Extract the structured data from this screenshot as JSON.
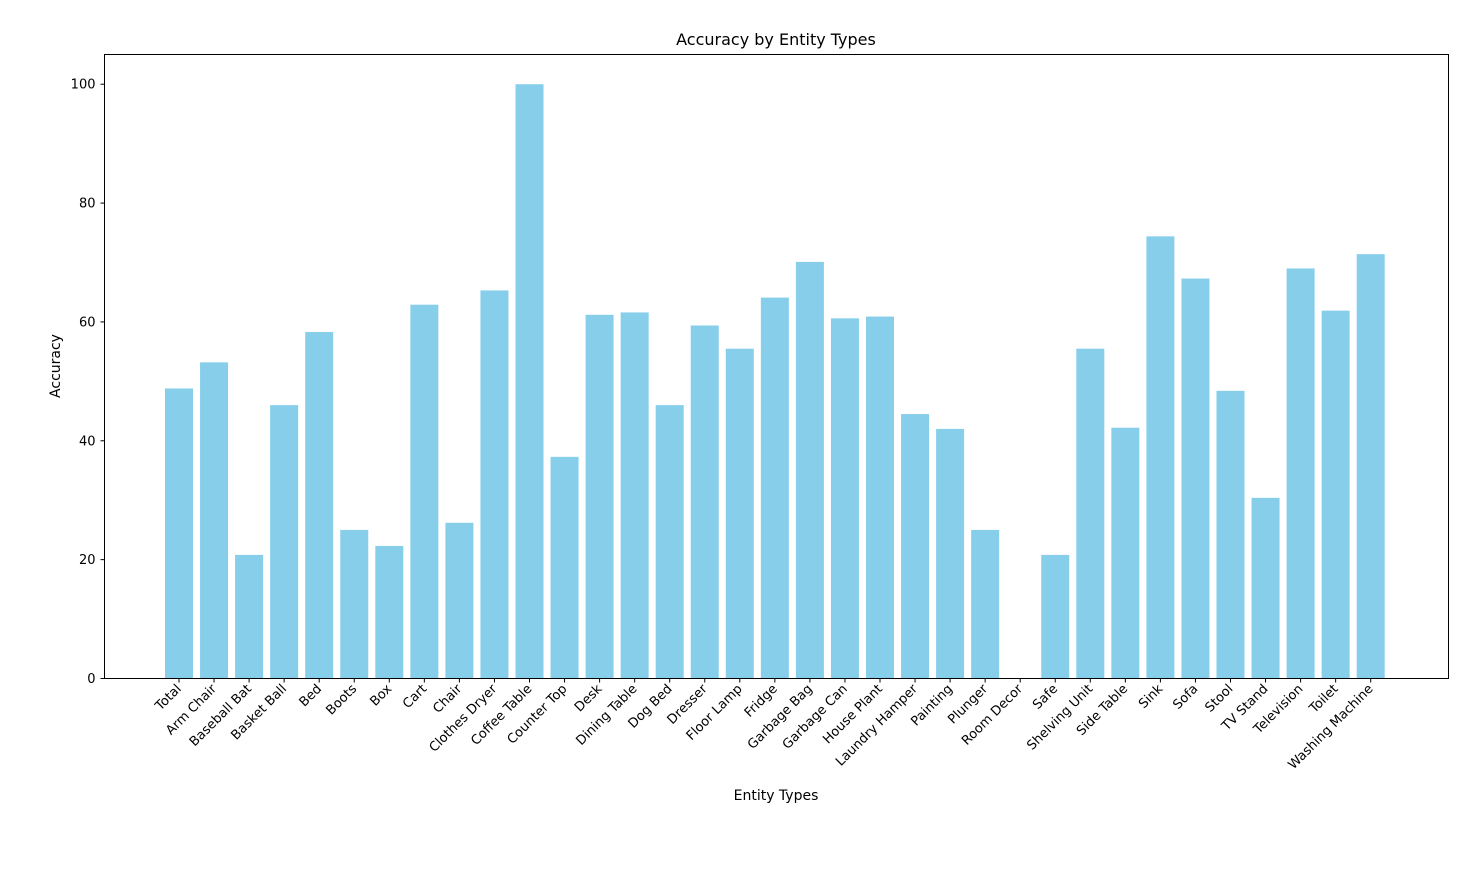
{
  "chart_data": {
    "type": "bar",
    "title": "Accuracy by Entity Types",
    "xlabel": "Entity Types",
    "ylabel": "Accuracy",
    "ylim": [
      0,
      105
    ],
    "yticks": [
      0,
      20,
      40,
      60,
      80,
      100
    ],
    "grid": false,
    "bar_color": "#87CEEB",
    "categories": [
      "Total",
      "Arm Chair",
      "Baseball Bat",
      "Basket Ball",
      "Bed",
      "Boots",
      "Box",
      "Cart",
      "Chair",
      "Clothes Dryer",
      "Coffee Table",
      "Counter Top",
      "Desk",
      "Dining Table",
      "Dog Bed",
      "Dresser",
      "Floor Lamp",
      "Fridge",
      "Garbage Bag",
      "Garbage Can",
      "House Plant",
      "Laundry Hamper",
      "Painting",
      "Plunger",
      "Room Decor",
      "Safe",
      "Shelving Unit",
      "Side Table",
      "Sink",
      "Sofa",
      "Stool",
      "TV Stand",
      "Television",
      "Toilet",
      "Washing Machine"
    ],
    "values": [
      48.8,
      53.2,
      20.8,
      46.0,
      58.3,
      25.0,
      22.3,
      62.9,
      26.2,
      65.3,
      100.0,
      37.3,
      61.2,
      61.6,
      46.0,
      59.4,
      55.5,
      64.1,
      70.1,
      60.6,
      60.9,
      44.5,
      42.0,
      25.0,
      0,
      20.8,
      55.5,
      42.2,
      74.4,
      67.3,
      48.4,
      30.4,
      69.0,
      61.9,
      71.4
    ]
  }
}
